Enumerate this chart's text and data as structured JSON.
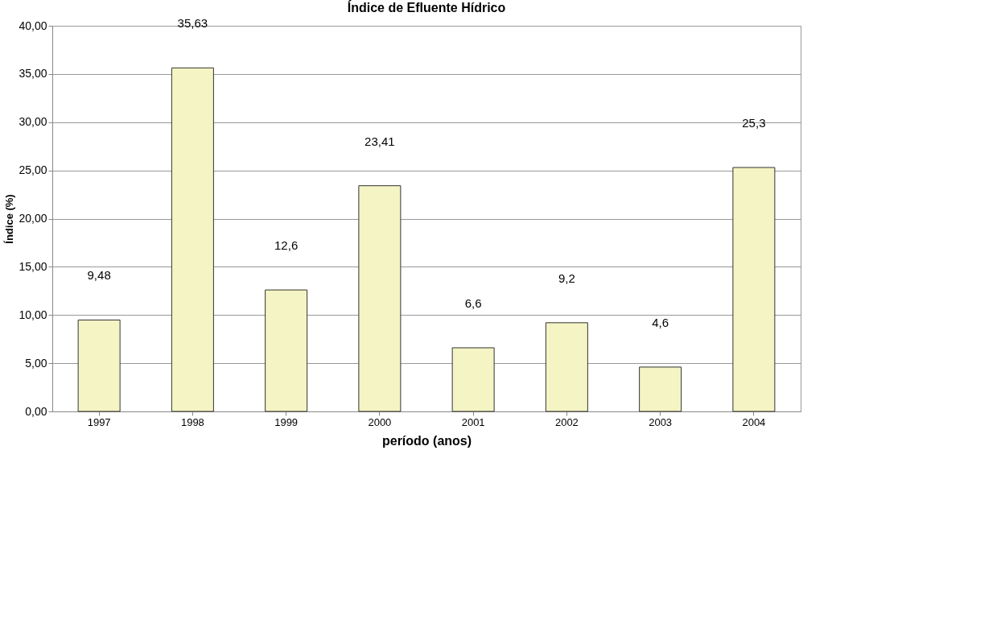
{
  "chart_data": {
    "type": "bar",
    "title": "Índice de Efluente Hídrico",
    "xlabel": "período (anos)",
    "ylabel": "Índice (%)",
    "categories": [
      "1997",
      "1998",
      "1999",
      "2000",
      "2001",
      "2002",
      "2003",
      "2004"
    ],
    "values": [
      9.48,
      35.63,
      12.6,
      23.41,
      6.6,
      9.2,
      4.6,
      25.3
    ],
    "value_labels": [
      "9,48",
      "35,63",
      "12,6",
      "23,41",
      "6,6",
      "9,2",
      "4,6",
      "25,3"
    ],
    "color": "#f4f4c4",
    "ylim": [
      0,
      40
    ],
    "yticks": [
      {
        "value": 0,
        "label": "0,00"
      },
      {
        "value": 5,
        "label": "5,00"
      },
      {
        "value": 10,
        "label": "10,00"
      },
      {
        "value": 15,
        "label": "15,00"
      },
      {
        "value": 20,
        "label": "20,00"
      },
      {
        "value": 25,
        "label": "25,00"
      },
      {
        "value": 30,
        "label": "30,00"
      },
      {
        "value": 35,
        "label": "35,00"
      },
      {
        "value": 40,
        "label": "40,00"
      }
    ],
    "grid": "y"
  }
}
